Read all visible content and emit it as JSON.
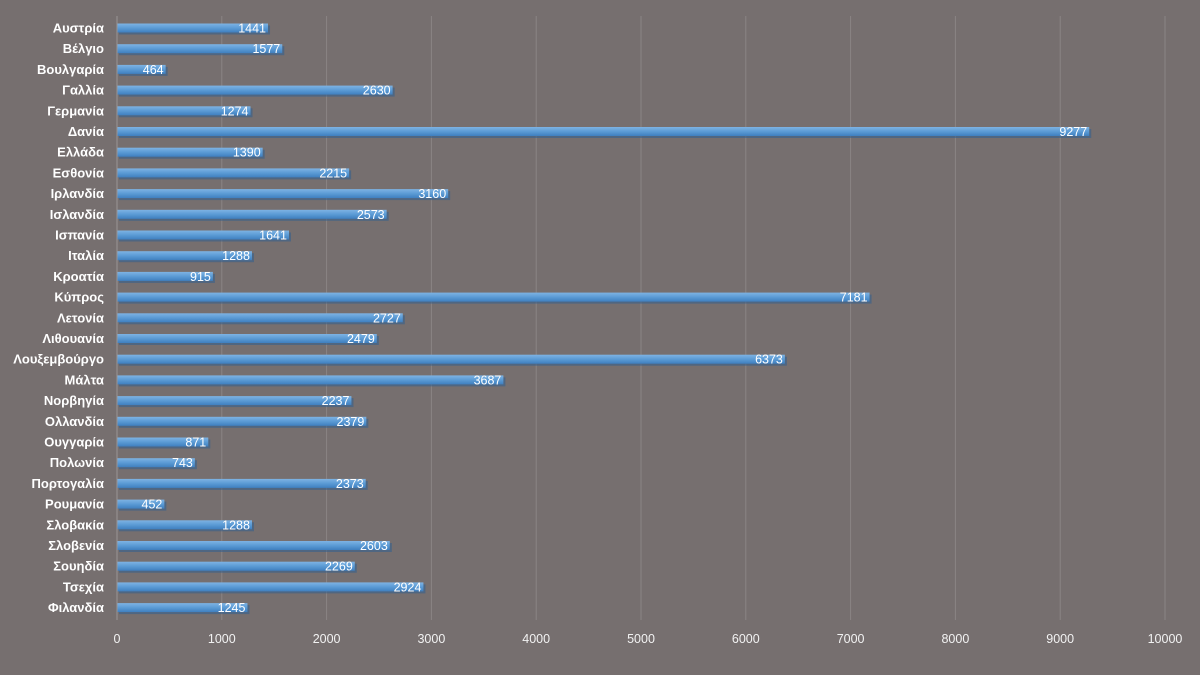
{
  "chart_data": {
    "type": "bar",
    "orientation": "horizontal",
    "title": "",
    "xlabel": "",
    "ylabel": "",
    "categories": [
      "Αυστρία",
      "Βέλγιο",
      "Βουλγαρία",
      "Γαλλία",
      "Γερμανία",
      "Δανία",
      "Ελλάδα",
      "Εσθονία",
      "Ιρλανδία",
      "Ισλανδία",
      "Ισπανία",
      "Ιταλία",
      "Κροατία",
      "Κύπρος",
      "Λετονία",
      "Λιθουανία",
      "Λουξεμβούργο",
      "Μάλτα",
      "Νορβηγία",
      "Ολλανδία",
      "Ουγγαρία",
      "Πολωνία",
      "Πορτογαλία",
      "Ρουμανία",
      "Σλοβακία",
      "Σλοβενία",
      "Σουηδία",
      "Τσεχία",
      "Φιλανδία"
    ],
    "values": [
      1441,
      1577,
      464,
      2630,
      1274,
      9277,
      1390,
      2215,
      3160,
      2573,
      1641,
      1288,
      915,
      7181,
      2727,
      2479,
      6373,
      3687,
      2237,
      2379,
      871,
      743,
      2373,
      452,
      1288,
      2603,
      2269,
      2924,
      1245
    ],
    "xlim": [
      0,
      10000
    ],
    "xticks": [
      "0",
      "1000",
      "2000",
      "3000",
      "4000",
      "5000",
      "6000",
      "7000",
      "8000",
      "9000",
      "10000"
    ],
    "grid": "vertical",
    "legend": "none",
    "data_labels": "inside-end"
  },
  "colors": {
    "background": "#766f6f",
    "bar": "#5b9bd5",
    "bar_highlight": "#7eb3e3",
    "bar_shadow": "#2f5f8f",
    "gridline": "#8a8484",
    "axis": "#9a9494",
    "text": "#ffffff"
  }
}
